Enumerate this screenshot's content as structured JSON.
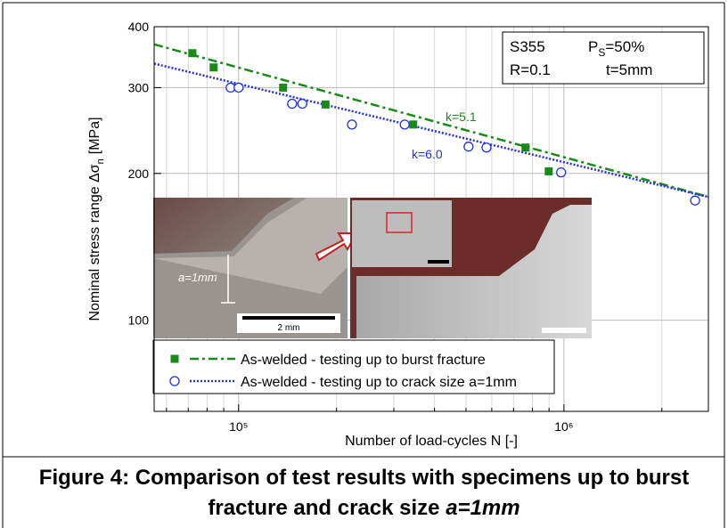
{
  "chart_data": {
    "type": "scatter",
    "xlabel": "Number of load-cycles N [-]",
    "ylabel": {
      "main": "Nominal stress range Δσ",
      "sub": "n",
      "unit": "[MPa]"
    },
    "xlog": true,
    "ylog": true,
    "grid": true,
    "xlim": [
      55000,
      2780000
    ],
    "ylim": [
      65,
      400
    ],
    "xticks": [
      {
        "value": 100000,
        "label": "10⁵"
      },
      {
        "value": 1000000,
        "label": "10⁶"
      }
    ],
    "xminorticks": [
      60000,
      70000,
      80000,
      90000,
      200000,
      300000,
      400000,
      500000,
      600000,
      700000,
      800000,
      900000,
      2000000
    ],
    "yticks": [
      100,
      200,
      300,
      400
    ],
    "series": [
      {
        "name": "As-welded - testing up to burst fracture",
        "color": "#178a17",
        "marker": "square",
        "x": [
          72100,
          83800,
          137000,
          185000,
          344000,
          762000,
          898000
        ],
        "values": [
          353,
          330,
          300,
          277,
          252,
          226,
          202
        ],
        "fit": {
          "x": [
            55000,
            2780000
          ],
          "values": [
            368,
            179
          ],
          "dash": "dashdot",
          "label": "k=5.1"
        }
      },
      {
        "name": "As-welded - testing up to crack size a=1mm",
        "color": "#2230e0",
        "marker": "circle",
        "x": [
          94500,
          100000,
          146000,
          157000,
          223000,
          324000,
          509000,
          578000,
          980000,
          2530000
        ],
        "values": [
          300,
          300,
          278,
          278,
          252,
          252,
          227,
          226,
          201,
          176
        ],
        "fit": {
          "x": [
            55000,
            2780000
          ],
          "values": [
            336,
            179
          ],
          "dash": "dotted",
          "label": "k=6.0"
        }
      }
    ],
    "legend": "bottom-left",
    "infobox": {
      "material": "S355",
      "p": "P",
      "p_sub": "S",
      "p_value": "=50%",
      "r": "R=0.1",
      "t": "t=5mm"
    },
    "inset": {
      "crack_label": "a=1mm",
      "scale_label": "2 mm"
    },
    "caption": {
      "text": "Figure 4: Comparison of test results with specimens up to burst fracture and crack size ",
      "italic": "a=1mm"
    }
  }
}
